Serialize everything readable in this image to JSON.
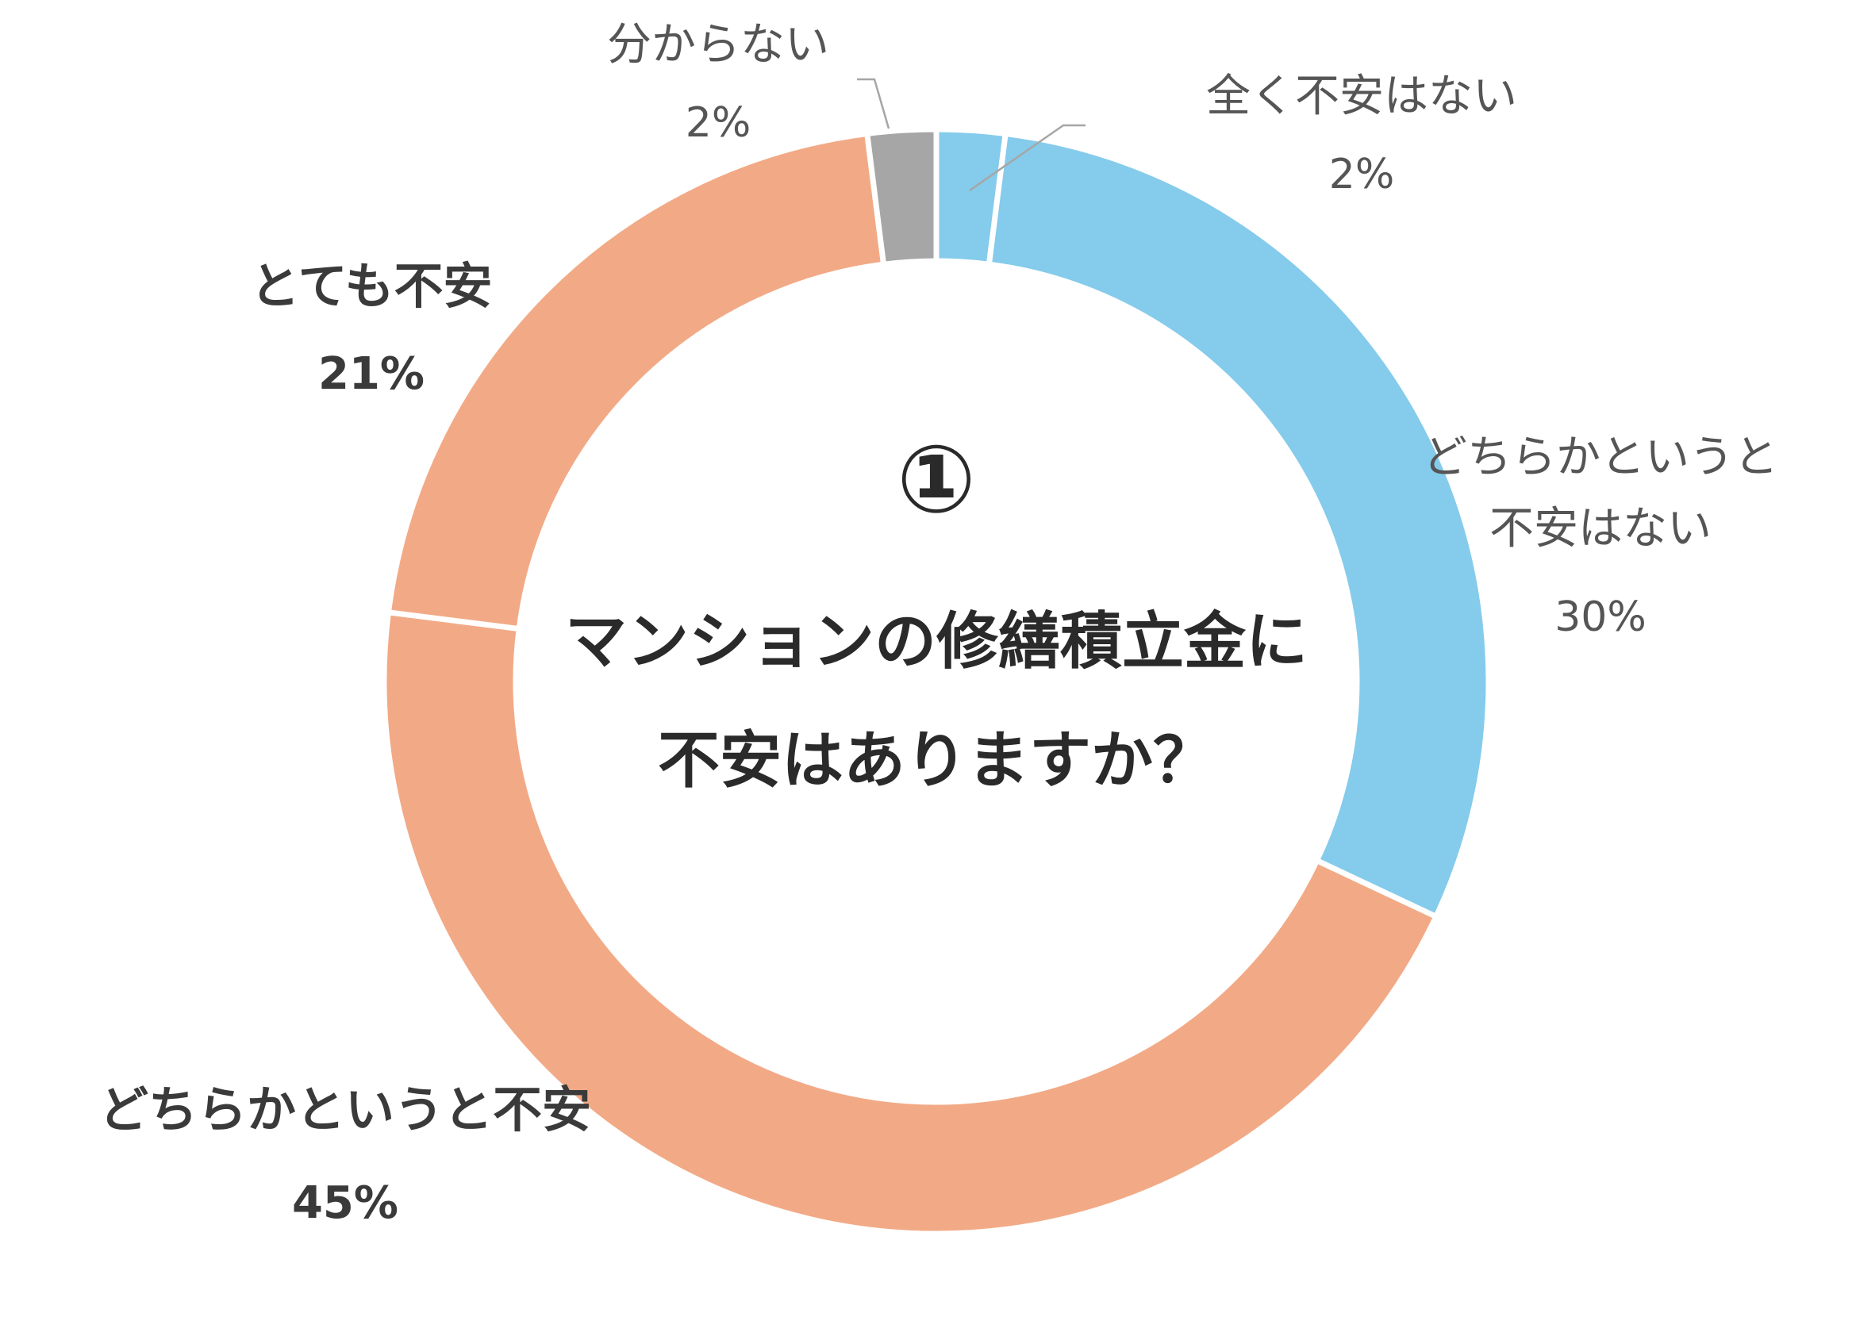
{
  "chart_data": {
    "type": "pie",
    "style": "donut",
    "center_number": "①",
    "center_title_lines": [
      "マンションの修繕積立金に",
      "不安はありますか？"
    ],
    "slices": [
      {
        "label_lines": [
          "全く不安はない"
        ],
        "value": 2,
        "value_label": "2%",
        "color": "#85cbeb",
        "label_weight": "light"
      },
      {
        "label_lines": [
          "どちらかというと",
          "不安はない"
        ],
        "value": 30,
        "value_label": "30%",
        "color": "#85cbeb",
        "label_weight": "light"
      },
      {
        "label_lines": [
          "どちらかというと不安"
        ],
        "value": 45,
        "value_label": "45%",
        "color": "#f2aa86",
        "label_weight": "bold"
      },
      {
        "label_lines": [
          "とても不安"
        ],
        "value": 21,
        "value_label": "21%",
        "color": "#f2aa86",
        "label_weight": "bold"
      },
      {
        "label_lines": [
          "分からない"
        ],
        "value": 2,
        "value_label": "2%",
        "color": "#a6a6a6",
        "label_weight": "light"
      }
    ],
    "start": "top",
    "direction": "clockwise",
    "legend": "none"
  }
}
